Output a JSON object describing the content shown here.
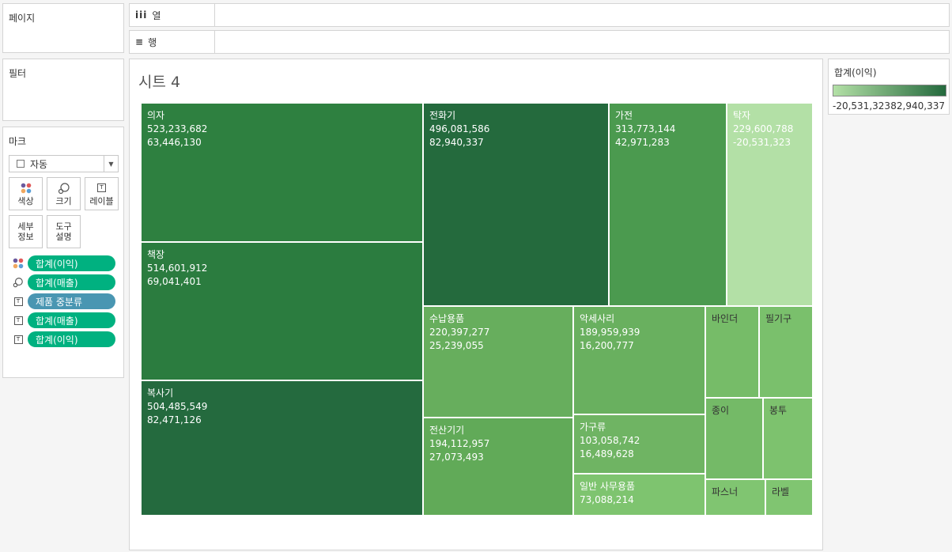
{
  "pages_panel": {
    "title": "페이지"
  },
  "filters_panel": {
    "title": "필터"
  },
  "marks_panel": {
    "title": "마크",
    "mark_type": "자동",
    "buttons": [
      {
        "label": "색상",
        "icon": "color-dots-icon"
      },
      {
        "label": "크기",
        "icon": "size-icon"
      },
      {
        "label": "레이블",
        "icon": "text-label-icon"
      },
      {
        "label": "세부\n정보",
        "icon": ""
      },
      {
        "label": "도구\n설명",
        "icon": ""
      }
    ],
    "pills": [
      {
        "type": "color",
        "label": "합계(이익)",
        "color": "#00b180"
      },
      {
        "type": "size",
        "label": "합계(매출)",
        "color": "#00b180"
      },
      {
        "type": "text",
        "label": "제품 중분류",
        "color": "#4996b2"
      },
      {
        "type": "text",
        "label": "합계(매출)",
        "color": "#00b180"
      },
      {
        "type": "text",
        "label": "합계(이익)",
        "color": "#00b180"
      }
    ]
  },
  "shelves": {
    "columns": {
      "label": "열",
      "icon": "iii"
    },
    "rows": {
      "label": "행",
      "icon": "≡"
    }
  },
  "sheet": {
    "title": "시트 4"
  },
  "legend": {
    "title": "합계(이익)",
    "min_label": "-20,531,323",
    "max_label": "82,940,337",
    "min_color": "#b3e0a6",
    "max_color": "#24693d"
  },
  "chart_data": {
    "type": "treemap",
    "title": "시트 4",
    "size_measure": "합계(매출)",
    "color_measure": "합계(이익)",
    "label_dimension": "제품 중분류",
    "tiles": [
      {
        "name": "의자",
        "sales": "523,233,682",
        "profit": "63,446,130"
      },
      {
        "name": "책장",
        "sales": "514,601,912",
        "profit": "69,041,401"
      },
      {
        "name": "복사기",
        "sales": "504,485,549",
        "profit": "82,471,126"
      },
      {
        "name": "전화기",
        "sales": "496,081,586",
        "profit": "82,940,337"
      },
      {
        "name": "가전",
        "sales": "313,773,144",
        "profit": "42,971,283"
      },
      {
        "name": "탁자",
        "sales": "229,600,788",
        "profit": "-20,531,323"
      },
      {
        "name": "수납용품",
        "sales": "220,397,277",
        "profit": "25,239,055"
      },
      {
        "name": "전산기기",
        "sales": "194,112,957",
        "profit": "27,073,493"
      },
      {
        "name": "악세사리",
        "sales": "189,959,939",
        "profit": "16,200,777"
      },
      {
        "name": "가구류",
        "sales": "103,058,742",
        "profit": "16,489,628"
      },
      {
        "name": "일반 사무용품",
        "sales": "73,088,214",
        "profit": ""
      },
      {
        "name": "바인더",
        "sales": "",
        "profit": ""
      },
      {
        "name": "필기구",
        "sales": "",
        "profit": ""
      },
      {
        "name": "종이",
        "sales": "",
        "profit": ""
      },
      {
        "name": "봉투",
        "sales": "",
        "profit": ""
      },
      {
        "name": "파스너",
        "sales": "",
        "profit": ""
      },
      {
        "name": "라벨",
        "sales": "",
        "profit": ""
      }
    ],
    "tile_colors": [
      "#2e8040",
      "#2b7c3f",
      "#246a3e",
      "#246a3d",
      "#4b9a4f",
      "#b3e0a6",
      "#67ae5d",
      "#61aa58",
      "#69b05f",
      "#6fb463",
      "#7ec46f",
      "#76bc68",
      "#7ac06c",
      "#74ba67",
      "#7dc26e",
      "#80c571",
      "#80c571"
    ]
  }
}
